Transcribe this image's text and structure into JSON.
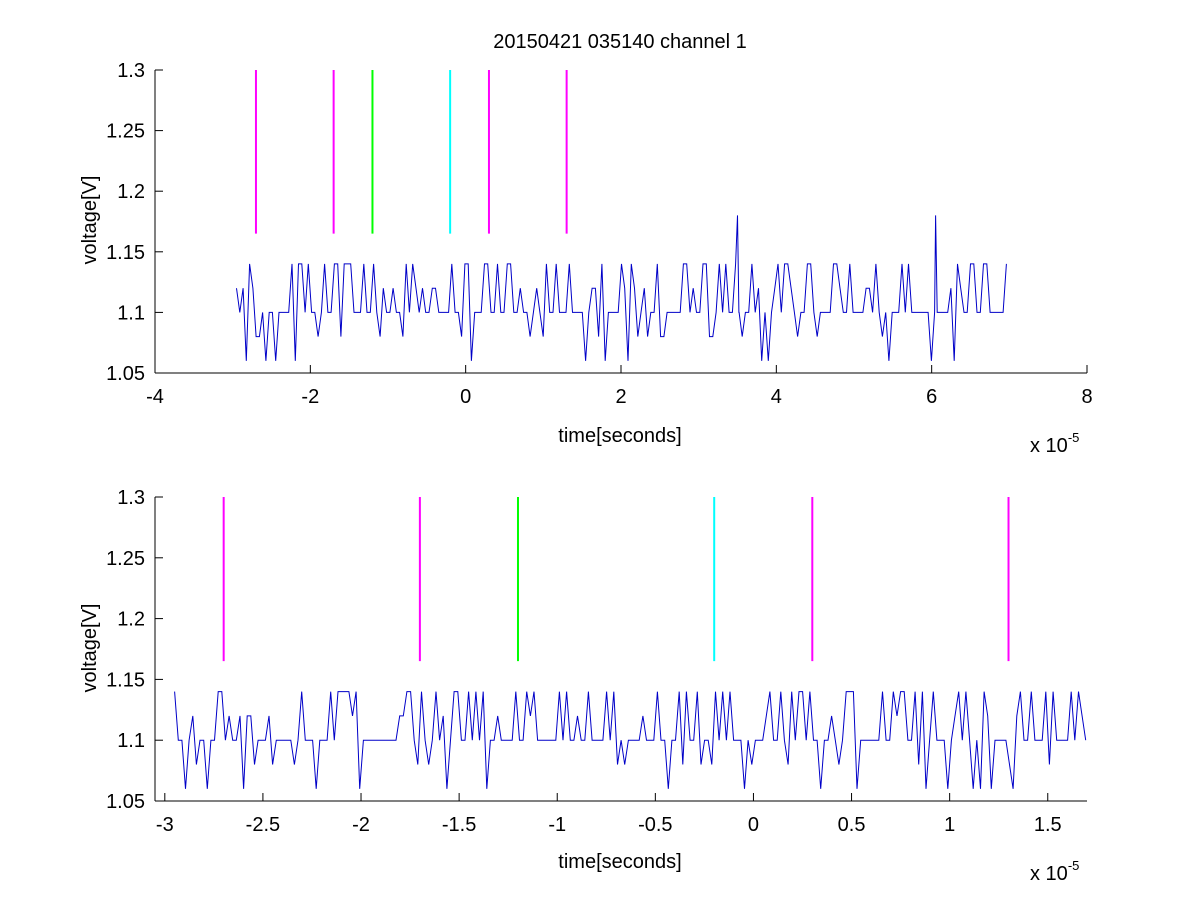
{
  "figure_title": "20150421 035140 channel 1",
  "colors": {
    "signal": "#0000c8",
    "magenta": "#ff00ff",
    "green": "#00ff00",
    "cyan": "#00ffff"
  },
  "chart_data": [
    {
      "type": "line",
      "title": "20150421 035140 channel 1",
      "xlabel": "time[seconds]",
      "ylabel": "voltage[V]",
      "x_exponent_label": "x 10",
      "x_exponent": "-5",
      "xlim": [
        -4,
        8
      ],
      "ylim": [
        1.05,
        1.3
      ],
      "x_ticks": [
        -4,
        -2,
        0,
        2,
        4,
        6,
        8
      ],
      "y_ticks": [
        1.05,
        1.1,
        1.15,
        1.2,
        1.25,
        1.3
      ],
      "x_tick_labels": [
        "-4",
        "-2",
        "0",
        "2",
        "4",
        "6",
        "8"
      ],
      "y_tick_labels": [
        "1.05",
        "1.1",
        "1.15",
        "1.2",
        "1.25",
        "1.3"
      ],
      "signal": {
        "x_range": [
          -2.95,
          7.0
        ],
        "baseline": 1.1,
        "high_level": 1.14,
        "low_level": 1.06,
        "spikes": [
          [
            3.5,
            1.18
          ],
          [
            6.05,
            1.18
          ]
        ]
      },
      "markers": [
        {
          "x": -2.7,
          "color": "magenta",
          "y_range": [
            1.165,
            1.3
          ]
        },
        {
          "x": -1.7,
          "color": "magenta",
          "y_range": [
            1.165,
            1.3
          ]
        },
        {
          "x": -1.2,
          "color": "green",
          "y_range": [
            1.165,
            1.3
          ]
        },
        {
          "x": -0.2,
          "color": "cyan",
          "y_range": [
            1.165,
            1.3
          ]
        },
        {
          "x": 0.3,
          "color": "magenta",
          "y_range": [
            1.165,
            1.3
          ]
        },
        {
          "x": 1.3,
          "color": "magenta",
          "y_range": [
            1.165,
            1.3
          ]
        }
      ]
    },
    {
      "type": "line",
      "title": "",
      "xlabel": "time[seconds]",
      "ylabel": "voltage[V]",
      "x_exponent_label": "x 10",
      "x_exponent": "-5",
      "xlim": [
        -3.05,
        1.7
      ],
      "ylim": [
        1.05,
        1.3
      ],
      "x_ticks": [
        -3,
        -2.5,
        -2,
        -1.5,
        -1,
        -0.5,
        0,
        0.5,
        1,
        1.5
      ],
      "y_ticks": [
        1.05,
        1.1,
        1.15,
        1.2,
        1.25,
        1.3
      ],
      "x_tick_labels": [
        "-3",
        "-2.5",
        "-2",
        "-1.5",
        "-1",
        "-0.5",
        "0",
        "0.5",
        "1",
        "1.5"
      ],
      "y_tick_labels": [
        "1.05",
        "1.1",
        "1.15",
        "1.2",
        "1.25",
        "1.3"
      ],
      "signal": {
        "x_range": [
          -2.95,
          1.7
        ],
        "baseline": 1.1,
        "high_level": 1.14,
        "low_level": 1.06,
        "spikes": []
      },
      "markers": [
        {
          "x": -2.7,
          "color": "magenta",
          "y_range": [
            1.165,
            1.3
          ]
        },
        {
          "x": -1.7,
          "color": "magenta",
          "y_range": [
            1.165,
            1.3
          ]
        },
        {
          "x": -1.2,
          "color": "green",
          "y_range": [
            1.165,
            1.3
          ]
        },
        {
          "x": -0.2,
          "color": "cyan",
          "y_range": [
            1.165,
            1.3
          ]
        },
        {
          "x": 0.3,
          "color": "magenta",
          "y_range": [
            1.165,
            1.3
          ]
        },
        {
          "x": 1.3,
          "color": "magenta",
          "y_range": [
            1.165,
            1.3
          ]
        }
      ]
    }
  ]
}
